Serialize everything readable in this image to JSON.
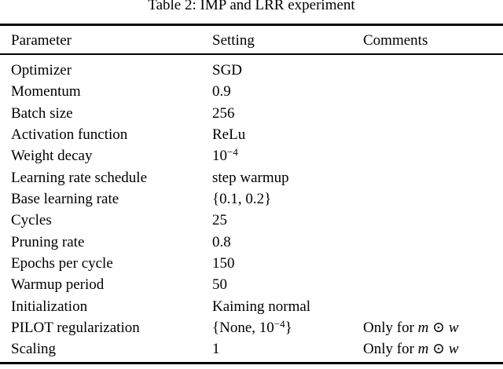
{
  "caption": "Table 2: IMP and LRR experiment",
  "colors": {
    "background": "#ffffff",
    "text": "#000000",
    "rule": "#000000"
  },
  "table": {
    "headers": [
      "Parameter",
      "Setting",
      "Comments"
    ],
    "rows": [
      {
        "parameter": [
          {
            "t": "Optimizer"
          }
        ],
        "setting": [
          {
            "t": "SGD"
          }
        ],
        "comments": []
      },
      {
        "parameter": [
          {
            "t": "Momentum"
          }
        ],
        "setting": [
          {
            "t": "0.9"
          }
        ],
        "comments": []
      },
      {
        "parameter": [
          {
            "t": "Batch size"
          }
        ],
        "setting": [
          {
            "t": "256"
          }
        ],
        "comments": []
      },
      {
        "parameter": [
          {
            "t": "Activation function"
          }
        ],
        "setting": [
          {
            "t": "ReLu"
          }
        ],
        "comments": []
      },
      {
        "parameter": [
          {
            "t": "Weight decay"
          }
        ],
        "setting": [
          {
            "t": "10"
          },
          {
            "t": "−4",
            "s": "sup"
          }
        ],
        "comments": []
      },
      {
        "parameter": [
          {
            "t": "Learning rate schedule"
          }
        ],
        "setting": [
          {
            "t": "step warmup"
          }
        ],
        "comments": []
      },
      {
        "parameter": [
          {
            "t": "Base learning rate"
          }
        ],
        "setting": [
          {
            "t": "{0.1, 0.2}"
          }
        ],
        "comments": []
      },
      {
        "parameter": [
          {
            "t": "Cycles"
          }
        ],
        "setting": [
          {
            "t": "25"
          }
        ],
        "comments": []
      },
      {
        "parameter": [
          {
            "t": "Pruning rate"
          }
        ],
        "setting": [
          {
            "t": "0.8"
          }
        ],
        "comments": []
      },
      {
        "parameter": [
          {
            "t": "Epochs per cycle"
          }
        ],
        "setting": [
          {
            "t": "150"
          }
        ],
        "comments": []
      },
      {
        "parameter": [
          {
            "t": "Warmup period"
          }
        ],
        "setting": [
          {
            "t": "50"
          }
        ],
        "comments": []
      },
      {
        "parameter": [
          {
            "t": "Initialization"
          }
        ],
        "setting": [
          {
            "t": "Kaiming normal"
          }
        ],
        "comments": []
      },
      {
        "parameter": [
          {
            "t": "PILOT regularization"
          }
        ],
        "setting": [
          {
            "t": "{None, 10"
          },
          {
            "t": "−4",
            "s": "sup"
          },
          {
            "t": "}"
          }
        ],
        "comments": [
          {
            "t": "Only for "
          },
          {
            "t": "m",
            "s": "i"
          },
          {
            "t": " ⊙ "
          },
          {
            "t": "w",
            "s": "i"
          }
        ]
      },
      {
        "parameter": [
          {
            "t": "Scaling"
          }
        ],
        "setting": [
          {
            "t": "1"
          }
        ],
        "comments": [
          {
            "t": "Only for "
          },
          {
            "t": "m",
            "s": "i"
          },
          {
            "t": " ⊙ "
          },
          {
            "t": "w",
            "s": "i"
          }
        ]
      }
    ]
  }
}
